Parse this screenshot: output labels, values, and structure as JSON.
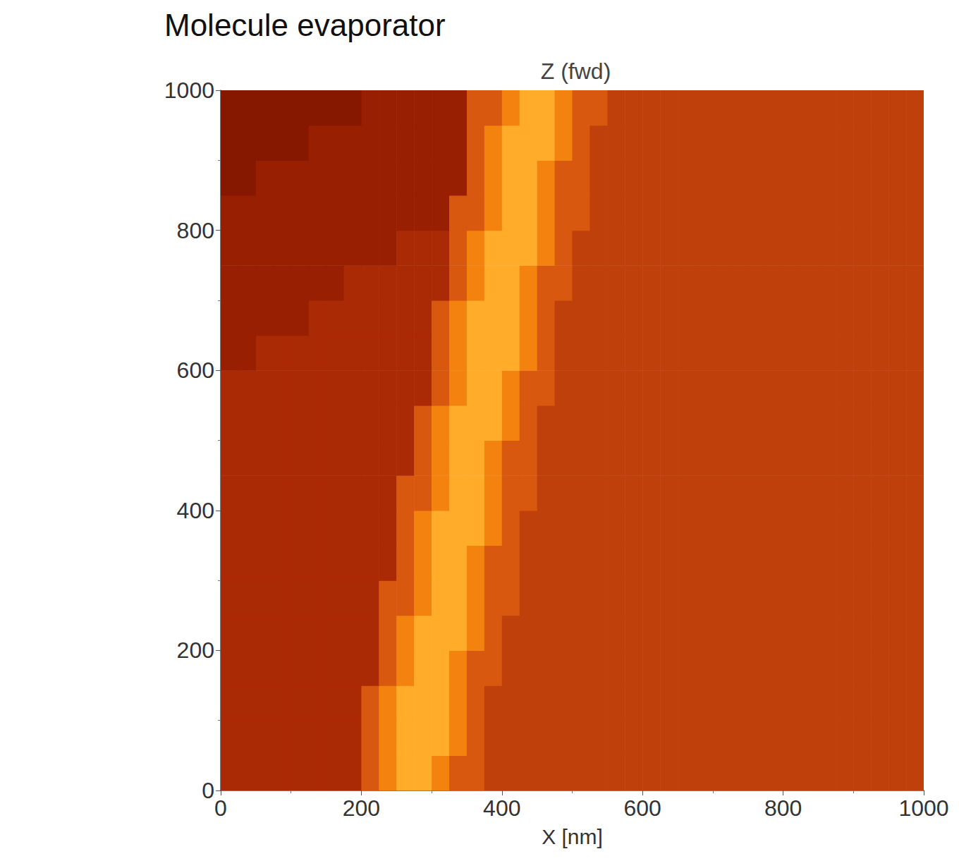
{
  "heading": "Molecule evaporator",
  "chart_data": {
    "type": "heatmap",
    "title": "Z (fwd)",
    "x_label": "X [nm]",
    "x": [
      12.5,
      37.5,
      62.5,
      87.5,
      112.5,
      137.5,
      162.5,
      187.5,
      212.5,
      237.5,
      262.5,
      287.5,
      312.5,
      337.5,
      362.5,
      387.5,
      412.5,
      437.5,
      462.5,
      487.5,
      512.5,
      537.5,
      562.5,
      587.5,
      612.5,
      637.5,
      662.5,
      687.5,
      712.5,
      737.5,
      762.5,
      787.5,
      812.5,
      837.5,
      862.5,
      887.5,
      912.5,
      937.5,
      962.5,
      987.5
    ],
    "y": [
      25,
      75,
      125,
      175,
      225,
      275,
      325,
      375,
      425,
      475,
      525,
      575,
      625,
      675,
      725,
      775,
      825,
      875,
      925,
      975
    ],
    "z": [
      [
        3,
        3,
        3,
        3,
        3,
        3,
        3,
        3,
        5,
        7,
        9,
        9,
        7,
        5,
        5,
        4,
        4,
        4,
        4,
        4,
        4,
        4,
        4,
        4,
        4,
        4,
        4,
        4,
        4,
        4,
        4,
        4,
        4,
        4,
        4,
        4,
        4,
        4,
        4,
        4
      ],
      [
        3,
        3,
        3,
        3,
        3,
        3,
        3,
        3,
        5,
        7,
        9,
        9,
        9,
        7,
        5,
        4,
        4,
        4,
        4,
        4,
        4,
        4,
        4,
        4,
        4,
        4,
        4,
        4,
        4,
        4,
        4,
        4,
        4,
        4,
        4,
        4,
        4,
        4,
        4,
        4
      ],
      [
        3,
        3,
        3,
        3,
        3,
        3,
        3,
        3,
        5,
        7,
        9,
        9,
        9,
        7,
        5,
        4,
        4,
        4,
        4,
        4,
        4,
        4,
        4,
        4,
        4,
        4,
        4,
        4,
        4,
        4,
        4,
        4,
        4,
        4,
        4,
        4,
        4,
        4,
        4,
        4
      ],
      [
        3,
        3,
        3,
        3,
        3,
        3,
        3,
        3,
        3,
        5,
        7,
        9,
        9,
        7,
        5,
        5,
        4,
        4,
        4,
        4,
        4,
        4,
        4,
        4,
        4,
        4,
        4,
        4,
        4,
        4,
        4,
        4,
        4,
        4,
        4,
        4,
        4,
        4,
        4,
        4
      ],
      [
        3,
        3,
        3,
        3,
        3,
        3,
        3,
        3,
        3,
        5,
        7,
        9,
        9,
        9,
        7,
        5,
        4,
        4,
        4,
        4,
        4,
        4,
        4,
        4,
        4,
        4,
        4,
        4,
        4,
        4,
        4,
        4,
        4,
        4,
        4,
        4,
        4,
        4,
        4,
        4
      ],
      [
        3,
        3,
        3,
        3,
        3,
        3,
        3,
        3,
        3,
        5,
        5,
        7,
        9,
        9,
        7,
        5,
        5,
        4,
        4,
        4,
        4,
        4,
        4,
        4,
        4,
        4,
        4,
        4,
        4,
        4,
        4,
        4,
        4,
        4,
        4,
        4,
        4,
        4,
        4,
        4
      ],
      [
        3,
        3,
        3,
        3,
        3,
        3,
        3,
        3,
        3,
        3,
        5,
        7,
        9,
        9,
        7,
        5,
        5,
        4,
        4,
        4,
        4,
        4,
        4,
        4,
        4,
        4,
        4,
        4,
        4,
        4,
        4,
        4,
        4,
        4,
        4,
        4,
        4,
        4,
        4,
        4
      ],
      [
        3,
        3,
        3,
        3,
        3,
        3,
        3,
        3,
        3,
        3,
        5,
        7,
        9,
        9,
        9,
        7,
        5,
        4,
        4,
        4,
        4,
        4,
        4,
        4,
        4,
        4,
        4,
        4,
        4,
        4,
        4,
        4,
        4,
        4,
        4,
        4,
        4,
        4,
        4,
        4
      ],
      [
        3,
        3,
        3,
        3,
        3,
        3,
        3,
        3,
        3,
        3,
        5,
        5,
        7,
        9,
        9,
        7,
        5,
        5,
        4,
        4,
        4,
        4,
        4,
        4,
        4,
        4,
        4,
        4,
        4,
        4,
        4,
        4,
        4,
        4,
        4,
        4,
        4,
        4,
        4,
        4
      ],
      [
        3,
        3,
        3,
        3,
        3,
        3,
        3,
        3,
        3,
        3,
        3,
        5,
        7,
        9,
        9,
        7,
        5,
        5,
        4,
        4,
        4,
        4,
        4,
        4,
        4,
        4,
        4,
        4,
        4,
        4,
        4,
        4,
        4,
        4,
        4,
        4,
        4,
        4,
        4,
        4
      ],
      [
        3,
        3,
        3,
        3,
        3,
        3,
        3,
        3,
        3,
        3,
        3,
        5,
        7,
        9,
        9,
        9,
        7,
        5,
        4,
        4,
        4,
        4,
        4,
        4,
        4,
        4,
        4,
        4,
        4,
        4,
        4,
        4,
        4,
        4,
        4,
        4,
        4,
        4,
        4,
        4
      ],
      [
        3,
        3,
        3,
        3,
        3,
        3,
        3,
        3,
        3,
        3,
        3,
        3,
        5,
        7,
        9,
        9,
        7,
        5,
        5,
        4,
        4,
        4,
        4,
        4,
        4,
        4,
        4,
        4,
        4,
        4,
        4,
        4,
        4,
        4,
        4,
        4,
        4,
        4,
        4,
        4
      ],
      [
        2,
        2,
        3,
        3,
        3,
        3,
        3,
        3,
        3,
        3,
        3,
        3,
        5,
        7,
        9,
        9,
        9,
        7,
        5,
        4,
        4,
        4,
        4,
        4,
        4,
        4,
        4,
        4,
        4,
        4,
        4,
        4,
        4,
        4,
        4,
        4,
        4,
        4,
        4,
        4
      ],
      [
        2,
        2,
        2,
        2,
        2,
        3,
        3,
        3,
        3,
        3,
        3,
        3,
        5,
        7,
        9,
        9,
        9,
        7,
        5,
        4,
        4,
        4,
        4,
        4,
        4,
        4,
        4,
        4,
        4,
        4,
        4,
        4,
        4,
        4,
        4,
        4,
        4,
        4,
        4,
        4
      ],
      [
        2,
        2,
        2,
        2,
        2,
        2,
        2,
        3,
        3,
        3,
        3,
        3,
        3,
        5,
        7,
        9,
        9,
        7,
        5,
        5,
        4,
        4,
        4,
        4,
        4,
        4,
        4,
        4,
        4,
        4,
        4,
        4,
        4,
        4,
        4,
        4,
        4,
        4,
        4,
        4
      ],
      [
        2,
        2,
        2,
        2,
        2,
        2,
        2,
        2,
        2,
        2,
        3,
        3,
        3,
        5,
        7,
        9,
        9,
        9,
        7,
        5,
        4,
        4,
        4,
        4,
        4,
        4,
        4,
        4,
        4,
        4,
        4,
        4,
        4,
        4,
        4,
        4,
        4,
        4,
        4,
        4
      ],
      [
        2,
        2,
        2,
        2,
        2,
        2,
        2,
        2,
        2,
        2,
        2,
        2,
        2,
        5,
        5,
        7,
        9,
        9,
        7,
        5,
        5,
        4,
        4,
        4,
        4,
        4,
        4,
        4,
        4,
        4,
        4,
        4,
        4,
        4,
        4,
        4,
        4,
        4,
        4,
        4
      ],
      [
        1,
        1,
        2,
        2,
        2,
        2,
        2,
        2,
        2,
        2,
        2,
        2,
        2,
        2,
        5,
        7,
        9,
        9,
        7,
        5,
        5,
        4,
        4,
        4,
        4,
        4,
        4,
        4,
        4,
        4,
        4,
        4,
        4,
        4,
        4,
        4,
        4,
        4,
        4,
        4
      ],
      [
        1,
        1,
        1,
        1,
        1,
        2,
        2,
        2,
        2,
        2,
        2,
        2,
        2,
        2,
        5,
        7,
        9,
        9,
        9,
        7,
        5,
        4,
        4,
        4,
        4,
        4,
        4,
        4,
        4,
        4,
        4,
        4,
        4,
        4,
        4,
        4,
        4,
        4,
        4,
        4
      ],
      [
        1,
        1,
        1,
        1,
        1,
        1,
        1,
        1,
        2,
        2,
        2,
        2,
        2,
        2,
        5,
        5,
        7,
        9,
        9,
        7,
        5,
        5,
        4,
        4,
        4,
        4,
        4,
        4,
        4,
        4,
        4,
        4,
        4,
        4,
        4,
        4,
        4,
        4,
        4,
        4
      ]
    ],
    "zlim": [
      1,
      9
    ],
    "xlim": [
      0,
      1000
    ],
    "ylim": [
      0,
      1000
    ],
    "xticks": [
      0,
      200,
      400,
      600,
      800,
      1000
    ],
    "yticks": [
      0,
      200,
      400,
      600,
      800,
      1000
    ],
    "grid": false
  }
}
